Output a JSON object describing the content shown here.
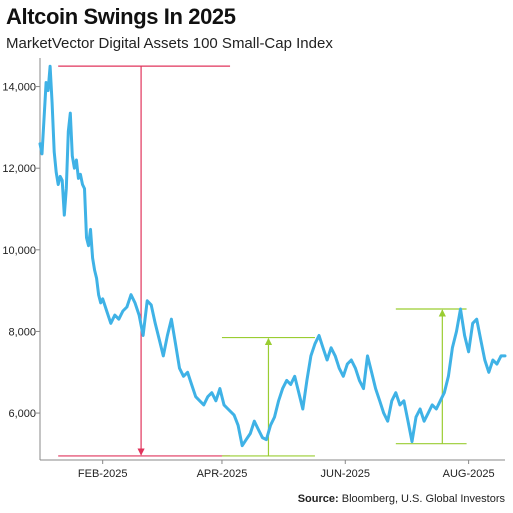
{
  "title": "Altcoin Swings In 2025",
  "subtitle": "MarketVector Digital Assets 100 Small-Cap Index",
  "source_label": "Source:",
  "source_text": "Bloomberg, U.S. Global Investors",
  "colors": {
    "line": "#3fb2e6",
    "drawdown": "#e0345c",
    "rally": "#9acd32",
    "axis": "#888888",
    "text": "#222222"
  },
  "chart_data": {
    "type": "line",
    "title": "Altcoin Swings In 2025",
    "subtitle": "MarketVector Digital Assets 100 Small-Cap Index",
    "xlabel": "",
    "ylabel": "",
    "ylim": [
      4850,
      14700
    ],
    "y_ticks": [
      6000,
      8000,
      10000,
      12000,
      14000
    ],
    "y_tick_labels": [
      "6,000",
      "8,000",
      "10,000",
      "12,000",
      "14,000"
    ],
    "x_ticks": [
      "2025-02-01",
      "2025-04-01",
      "2025-06-01",
      "2025-08-01"
    ],
    "x_tick_labels": [
      "FEB-2025",
      "APR-2025",
      "JUN-2025",
      "AUG-2025"
    ],
    "xlim": [
      "2025-01-01",
      "2025-08-19"
    ],
    "grid": false,
    "legend": "none",
    "series": [
      {
        "x": [
          "2025-01-01",
          "2025-01-02",
          "2025-01-03",
          "2025-01-04",
          "2025-01-05",
          "2025-01-06",
          "2025-01-07",
          "2025-01-08",
          "2025-01-09",
          "2025-01-10",
          "2025-01-11",
          "2025-01-12",
          "2025-01-13",
          "2025-01-14",
          "2025-01-15",
          "2025-01-16",
          "2025-01-17",
          "2025-01-18",
          "2025-01-19",
          "2025-01-20",
          "2025-01-21",
          "2025-01-22",
          "2025-01-23",
          "2025-01-24",
          "2025-01-25",
          "2025-01-26",
          "2025-01-27",
          "2025-01-28",
          "2025-01-29",
          "2025-01-30",
          "2025-01-31",
          "2025-02-01",
          "2025-02-03",
          "2025-02-05",
          "2025-02-07",
          "2025-02-09",
          "2025-02-11",
          "2025-02-13",
          "2025-02-15",
          "2025-02-17",
          "2025-02-19",
          "2025-02-21",
          "2025-02-23",
          "2025-02-25",
          "2025-02-27",
          "2025-03-01",
          "2025-03-03",
          "2025-03-05",
          "2025-03-07",
          "2025-03-09",
          "2025-03-11",
          "2025-03-13",
          "2025-03-15",
          "2025-03-17",
          "2025-03-19",
          "2025-03-21",
          "2025-03-23",
          "2025-03-25",
          "2025-03-27",
          "2025-03-29",
          "2025-03-31",
          "2025-04-02",
          "2025-04-04",
          "2025-04-07",
          "2025-04-09",
          "2025-04-11",
          "2025-04-13",
          "2025-04-15",
          "2025-04-17",
          "2025-04-19",
          "2025-04-21",
          "2025-04-23",
          "2025-04-25",
          "2025-04-27",
          "2025-04-29",
          "2025-05-01",
          "2025-05-03",
          "2025-05-05",
          "2025-05-07",
          "2025-05-09",
          "2025-05-11",
          "2025-05-13",
          "2025-05-15",
          "2025-05-17",
          "2025-05-19",
          "2025-05-21",
          "2025-05-23",
          "2025-05-25",
          "2025-05-27",
          "2025-05-29",
          "2025-05-31",
          "2025-06-02",
          "2025-06-04",
          "2025-06-06",
          "2025-06-08",
          "2025-06-10",
          "2025-06-12",
          "2025-06-14",
          "2025-06-16",
          "2025-06-18",
          "2025-06-20",
          "2025-06-22",
          "2025-06-24",
          "2025-06-26",
          "2025-06-28",
          "2025-06-30",
          "2025-07-02",
          "2025-07-04",
          "2025-07-06",
          "2025-07-08",
          "2025-07-10",
          "2025-07-12",
          "2025-07-14",
          "2025-07-16",
          "2025-07-18",
          "2025-07-20",
          "2025-07-22",
          "2025-07-24",
          "2025-07-26",
          "2025-07-28",
          "2025-07-30",
          "2025-08-01",
          "2025-08-03",
          "2025-08-05",
          "2025-08-07",
          "2025-08-09",
          "2025-08-11",
          "2025-08-13",
          "2025-08-15",
          "2025-08-17",
          "2025-08-19"
        ],
        "values": [
          12600,
          12350,
          13200,
          14100,
          13900,
          14500,
          13600,
          12400,
          11900,
          11600,
          11800,
          11700,
          10850,
          11500,
          12900,
          13350,
          12300,
          12000,
          12200,
          11750,
          11850,
          11600,
          11500,
          10300,
          10100,
          10500,
          9800,
          9500,
          9300,
          8900,
          8700,
          8800,
          8500,
          8200,
          8400,
          8300,
          8500,
          8600,
          8900,
          8700,
          8400,
          7900,
          8750,
          8650,
          8200,
          7800,
          7400,
          7900,
          8300,
          7700,
          7100,
          6900,
          7000,
          6700,
          6400,
          6300,
          6200,
          6400,
          6500,
          6300,
          6600,
          6200,
          6100,
          5950,
          5700,
          5200,
          5350,
          5500,
          5800,
          5600,
          5400,
          5350,
          5700,
          5900,
          6300,
          6600,
          6800,
          6700,
          6900,
          6500,
          6100,
          6800,
          7400,
          7700,
          7900,
          7600,
          7300,
          7600,
          7400,
          7100,
          6900,
          7200,
          7300,
          7100,
          6800,
          6600,
          7400,
          7000,
          6600,
          6300,
          6000,
          5800,
          6300,
          6500,
          6200,
          6300,
          5800,
          5300,
          5900,
          6100,
          5800,
          6000,
          6200,
          6100,
          6300,
          6500,
          6900,
          7600,
          8000,
          8550,
          7900,
          7500,
          8200,
          8300,
          7800,
          7300,
          7000,
          7300,
          7200,
          7400,
          7400
        ]
      }
    ],
    "annotations": [
      {
        "type": "drawdown",
        "from_date": "2025-01-10",
        "to_date": "2025-04-05",
        "top": 14500,
        "bottom": 4950,
        "arrow_date": "2025-02-20"
      },
      {
        "type": "rally",
        "from_date": "2025-04-01",
        "to_date": "2025-05-17",
        "bottom": 4950,
        "top": 7850,
        "arrow_date": "2025-04-24"
      },
      {
        "type": "rally",
        "from_date": "2025-06-26",
        "to_date": "2025-07-31",
        "bottom": 5250,
        "top": 8550,
        "arrow_date": "2025-07-19"
      }
    ]
  }
}
